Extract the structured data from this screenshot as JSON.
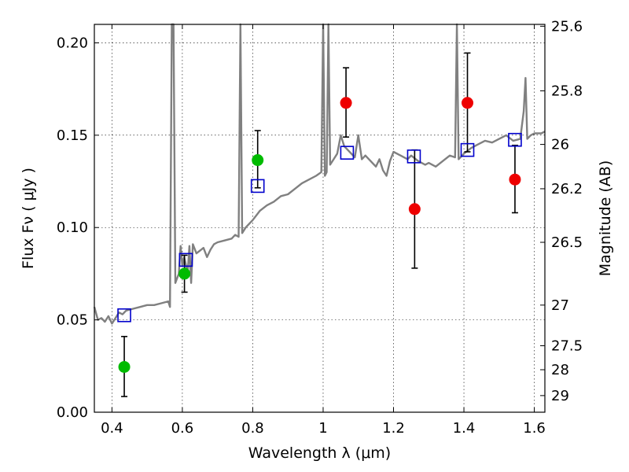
{
  "chart_data": {
    "type": "scatter",
    "xlabel": "Wavelength  λ (μm)",
    "ylabel": "Flux  Fν  ( μJy )",
    "ylabel_right": "Magnitude (AB)",
    "xlim": [
      0.35,
      1.63
    ],
    "ylim": [
      0.0,
      0.21
    ],
    "grid": true,
    "x_ticks": [
      0.4,
      0.6,
      0.8,
      1.0,
      1.2,
      1.4,
      1.6
    ],
    "x_tick_labels": [
      "0.4",
      "0.6",
      "0.8",
      "1",
      "1.2",
      "1.4",
      "1.6"
    ],
    "y_ticks": [
      0.0,
      0.05,
      0.1,
      0.15,
      0.2
    ],
    "y_tick_labels": [
      "0.00",
      "0.05",
      "0.10",
      "0.15",
      "0.20"
    ],
    "right_ticks": [
      {
        "label": "25.6",
        "flux": 0.209
      },
      {
        "label": "25.8",
        "flux": 0.174
      },
      {
        "label": "26",
        "flux": 0.145
      },
      {
        "label": "26.2",
        "flux": 0.121
      },
      {
        "label": "26.5",
        "flux": 0.092
      },
      {
        "label": "27",
        "flux": 0.058
      },
      {
        "label": "27.5",
        "flux": 0.036
      },
      {
        "label": "28",
        "flux": 0.023
      },
      {
        "label": "29",
        "flux": 0.009
      }
    ],
    "colors": {
      "green": "#00bb00",
      "red": "#ee0000",
      "model_box": "#0000cc",
      "sed": "#808080"
    },
    "series": [
      {
        "color": "green",
        "marker": "circle",
        "points": [
          {
            "x": 0.435,
            "y": 0.0245,
            "err_lo": 0.0085,
            "err_hi": 0.041
          },
          {
            "x": 0.606,
            "y": 0.075,
            "err_lo": 0.065,
            "err_hi": 0.085
          },
          {
            "x": 0.814,
            "y": 0.1365,
            "err_lo": 0.1215,
            "err_hi": 0.1525
          }
        ]
      },
      {
        "color": "red",
        "marker": "circle",
        "points": [
          {
            "x": 1.065,
            "y": 0.1675,
            "err_lo": 0.149,
            "err_hi": 0.1865
          },
          {
            "x": 1.26,
            "y": 0.11,
            "err_lo": 0.078,
            "err_hi": 0.142
          },
          {
            "x": 1.41,
            "y": 0.1675,
            "err_lo": 0.141,
            "err_hi": 0.1945
          },
          {
            "x": 1.545,
            "y": 0.126,
            "err_lo": 0.108,
            "err_hi": 0.1445
          }
        ]
      },
      {
        "color": "model_box",
        "marker": "square",
        "points": [
          {
            "x": 0.435,
            "y": 0.0525
          },
          {
            "x": 0.61,
            "y": 0.0825
          },
          {
            "x": 0.814,
            "y": 0.1225
          },
          {
            "x": 1.068,
            "y": 0.1405
          },
          {
            "x": 1.258,
            "y": 0.1385
          },
          {
            "x": 1.41,
            "y": 0.142
          },
          {
            "x": 1.545,
            "y": 0.1475
          }
        ]
      }
    ],
    "sed_line": {
      "color": "sed",
      "points": [
        [
          0.35,
          0.057
        ],
        [
          0.36,
          0.05
        ],
        [
          0.37,
          0.051
        ],
        [
          0.38,
          0.049
        ],
        [
          0.39,
          0.052
        ],
        [
          0.4,
          0.048
        ],
        [
          0.41,
          0.051
        ],
        [
          0.42,
          0.054
        ],
        [
          0.43,
          0.053
        ],
        [
          0.44,
          0.055
        ],
        [
          0.46,
          0.056
        ],
        [
          0.48,
          0.057
        ],
        [
          0.5,
          0.058
        ],
        [
          0.52,
          0.058
        ],
        [
          0.54,
          0.059
        ],
        [
          0.56,
          0.06
        ],
        [
          0.565,
          0.057
        ],
        [
          0.57,
          0.21
        ],
        [
          0.575,
          0.21
        ],
        [
          0.58,
          0.07
        ],
        [
          0.59,
          0.075
        ],
        [
          0.595,
          0.09
        ],
        [
          0.6,
          0.079
        ],
        [
          0.605,
          0.084
        ],
        [
          0.61,
          0.08
        ],
        [
          0.615,
          0.075
        ],
        [
          0.62,
          0.09
        ],
        [
          0.625,
          0.07
        ],
        [
          0.63,
          0.091
        ],
        [
          0.64,
          0.086
        ],
        [
          0.66,
          0.089
        ],
        [
          0.67,
          0.084
        ],
        [
          0.68,
          0.088
        ],
        [
          0.69,
          0.091
        ],
        [
          0.7,
          0.092
        ],
        [
          0.72,
          0.093
        ],
        [
          0.74,
          0.094
        ],
        [
          0.75,
          0.096
        ],
        [
          0.76,
          0.095
        ],
        [
          0.765,
          0.21
        ],
        [
          0.77,
          0.097
        ],
        [
          0.78,
          0.1
        ],
        [
          0.8,
          0.104
        ],
        [
          0.82,
          0.109
        ],
        [
          0.84,
          0.112
        ],
        [
          0.86,
          0.114
        ],
        [
          0.88,
          0.117
        ],
        [
          0.9,
          0.118
        ],
        [
          0.92,
          0.121
        ],
        [
          0.94,
          0.124
        ],
        [
          0.96,
          0.126
        ],
        [
          0.98,
          0.128
        ],
        [
          0.995,
          0.13
        ],
        [
          1.0,
          0.21
        ],
        [
          1.005,
          0.128
        ],
        [
          1.01,
          0.13
        ],
        [
          1.015,
          0.21
        ],
        [
          1.02,
          0.134
        ],
        [
          1.03,
          0.137
        ],
        [
          1.04,
          0.14
        ],
        [
          1.05,
          0.15
        ],
        [
          1.06,
          0.144
        ],
        [
          1.07,
          0.142
        ],
        [
          1.08,
          0.14
        ],
        [
          1.09,
          0.138
        ],
        [
          1.1,
          0.15
        ],
        [
          1.11,
          0.137
        ],
        [
          1.12,
          0.139
        ],
        [
          1.13,
          0.137
        ],
        [
          1.14,
          0.135
        ],
        [
          1.15,
          0.133
        ],
        [
          1.16,
          0.137
        ],
        [
          1.17,
          0.131
        ],
        [
          1.18,
          0.128
        ],
        [
          1.19,
          0.136
        ],
        [
          1.2,
          0.141
        ],
        [
          1.22,
          0.139
        ],
        [
          1.24,
          0.137
        ],
        [
          1.25,
          0.139
        ],
        [
          1.27,
          0.136
        ],
        [
          1.29,
          0.134
        ],
        [
          1.3,
          0.135
        ],
        [
          1.32,
          0.133
        ],
        [
          1.34,
          0.136
        ],
        [
          1.36,
          0.139
        ],
        [
          1.375,
          0.138
        ],
        [
          1.38,
          0.21
        ],
        [
          1.385,
          0.137
        ],
        [
          1.4,
          0.14
        ],
        [
          1.42,
          0.143
        ],
        [
          1.44,
          0.145
        ],
        [
          1.46,
          0.147
        ],
        [
          1.48,
          0.146
        ],
        [
          1.5,
          0.148
        ],
        [
          1.52,
          0.15
        ],
        [
          1.54,
          0.147
        ],
        [
          1.56,
          0.148
        ],
        [
          1.57,
          0.163
        ],
        [
          1.575,
          0.181
        ],
        [
          1.58,
          0.148
        ],
        [
          1.59,
          0.15
        ],
        [
          1.6,
          0.151
        ],
        [
          1.62,
          0.151
        ],
        [
          1.63,
          0.152
        ]
      ]
    }
  }
}
